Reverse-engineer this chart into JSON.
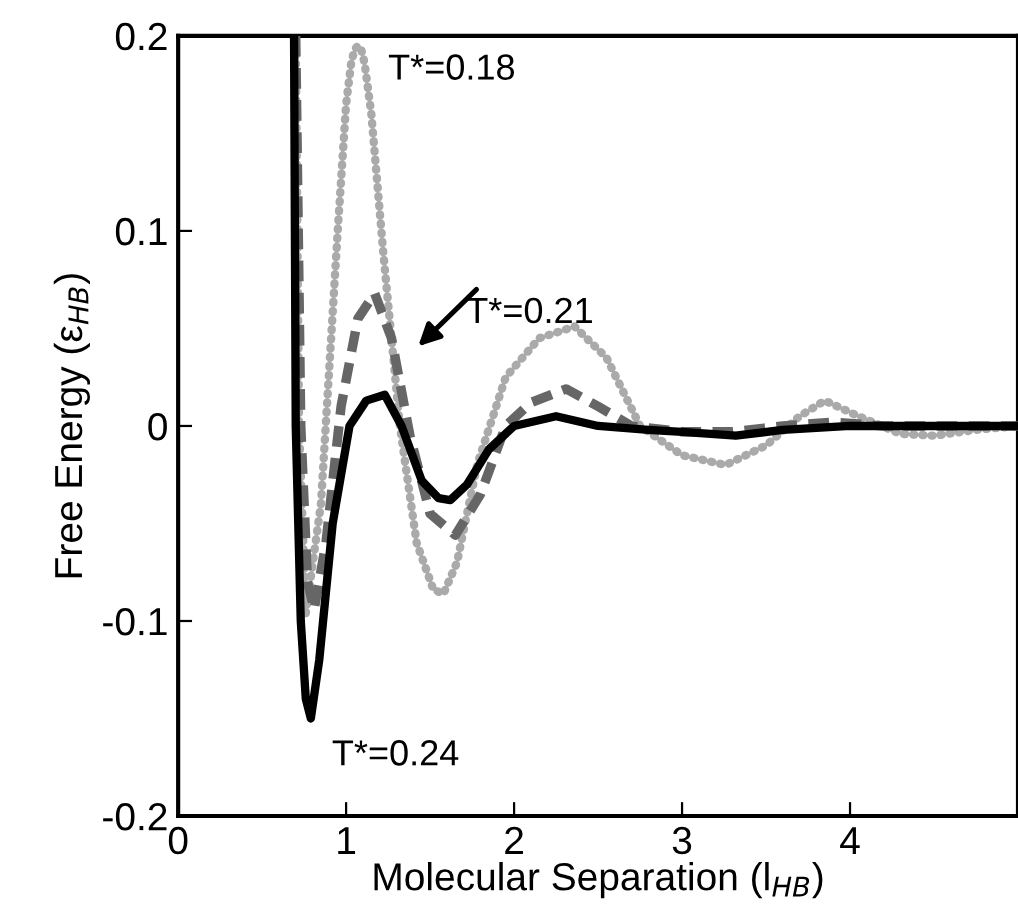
{
  "chart_data": {
    "type": "line",
    "xlabel": "Molecular Separation (l$_{HB}$)",
    "ylabel": "Free Energy (ε$_{HB}$)",
    "xlim": [
      0,
      5
    ],
    "ylim": [
      -0.2,
      0.2
    ],
    "xticks": [
      0,
      1,
      2,
      3,
      4
    ],
    "yticks": [
      -0.2,
      -0.1,
      0,
      0.1,
      0.2
    ],
    "grid": false,
    "legend": false,
    "marker": "none",
    "series": [
      {
        "color": "#aaaaaa",
        "line_style": "dotted",
        "x": [
          0.7,
          0.72,
          0.76,
          0.85,
          0.95,
          1.0,
          1.03,
          1.05,
          1.07,
          1.09,
          1.11,
          1.15,
          1.22,
          1.32,
          1.42,
          1.52,
          1.58,
          1.66,
          1.78,
          1.95,
          2.15,
          2.36,
          2.55,
          2.75,
          3.0,
          3.26,
          3.5,
          3.7,
          3.85,
          4.05,
          4.3,
          4.5,
          4.75,
          5.0
        ],
        "values": [
          0.2,
          0.0,
          -0.096,
          -0.04,
          0.1,
          0.165,
          0.186,
          0.193,
          0.195,
          0.193,
          0.186,
          0.16,
          0.09,
          0.0,
          -0.06,
          -0.084,
          -0.086,
          -0.07,
          -0.02,
          0.025,
          0.045,
          0.051,
          0.035,
          0.0,
          -0.015,
          -0.02,
          -0.01,
          0.005,
          0.013,
          0.005,
          -0.004,
          -0.005,
          -0.002,
          0.0
        ]
      },
      {
        "color": "#666666",
        "line_style": "dashed",
        "x": [
          0.7,
          0.73,
          0.77,
          0.81,
          0.88,
          0.97,
          1.07,
          1.17,
          1.27,
          1.38,
          1.5,
          1.65,
          1.8,
          1.95,
          2.1,
          2.31,
          2.5,
          2.7,
          3.0,
          3.3,
          3.6,
          3.9,
          4.2,
          4.6,
          5.0
        ],
        "values": [
          0.2,
          0.0,
          -0.08,
          -0.094,
          -0.06,
          0.01,
          0.055,
          0.068,
          0.045,
          -0.005,
          -0.045,
          -0.056,
          -0.035,
          0.0,
          0.012,
          0.019,
          0.01,
          0.0,
          -0.003,
          -0.003,
          0.0,
          0.002,
          0.0,
          0.0,
          0.0
        ]
      },
      {
        "color": "#000000",
        "line_style": "solid",
        "x": [
          0.69,
          0.7,
          0.73,
          0.76,
          0.79,
          0.84,
          0.92,
          1.02,
          1.12,
          1.23,
          1.33,
          1.45,
          1.55,
          1.62,
          1.72,
          1.85,
          2.0,
          2.25,
          2.5,
          2.8,
          3.0,
          3.32,
          3.6,
          4.0,
          4.5,
          5.0
        ],
        "values": [
          0.2,
          0.0,
          -0.1,
          -0.14,
          -0.15,
          -0.12,
          -0.05,
          0.0,
          0.013,
          0.016,
          0.0,
          -0.028,
          -0.037,
          -0.038,
          -0.03,
          -0.012,
          0.0,
          0.005,
          0.0,
          -0.002,
          -0.003,
          -0.005,
          -0.002,
          0.0,
          0.0,
          0.0
        ]
      }
    ],
    "annotations": [
      "T*=0.18",
      "T*=0.21",
      "T*=0.24"
    ]
  }
}
